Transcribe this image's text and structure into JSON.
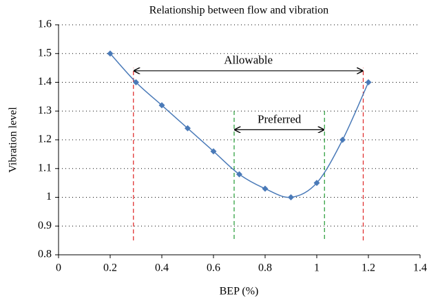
{
  "chart_data": {
    "type": "line",
    "title": "Relationship between flow and vibration",
    "x_label": "BEP (%)",
    "y_label": "Vibration level",
    "x": [
      0.2,
      0.3,
      0.4,
      0.5,
      0.6,
      0.7,
      0.8,
      0.9,
      1.0,
      1.1,
      1.2
    ],
    "series": [
      {
        "name": "Vibration level",
        "color": "#4a7ab8",
        "values": [
          1.5,
          1.4,
          1.32,
          1.24,
          1.16,
          1.08,
          1.03,
          1.0,
          1.05,
          1.2,
          1.4
        ]
      }
    ],
    "xlim": [
      0,
      1.4
    ],
    "xticks": [
      0,
      0.2,
      0.4,
      0.6,
      0.8,
      1,
      1.2,
      1.4
    ],
    "ylim": [
      0.8,
      1.6
    ],
    "yticks": [
      0.8,
      0.9,
      1,
      1.1,
      1.2,
      1.3,
      1.4,
      1.5,
      1.6
    ],
    "grid": true,
    "reference_lines": [
      {
        "x": 0.29,
        "y_range": [
          0.85,
          1.45
        ],
        "color": "#e03030"
      },
      {
        "x": 1.18,
        "y_range": [
          0.85,
          1.45
        ],
        "color": "#e03030"
      },
      {
        "x": 0.68,
        "y_range": [
          0.855,
          1.3
        ],
        "color": "#30a040"
      },
      {
        "x": 1.03,
        "y_range": [
          0.855,
          1.3
        ],
        "color": "#30a040"
      }
    ],
    "annotations": [
      {
        "text": "Allowable",
        "x_range": [
          0.29,
          1.18
        ],
        "y": 1.44
      },
      {
        "text": "Preferred",
        "x_range": [
          0.68,
          1.03
        ],
        "y": 1.235
      }
    ]
  }
}
